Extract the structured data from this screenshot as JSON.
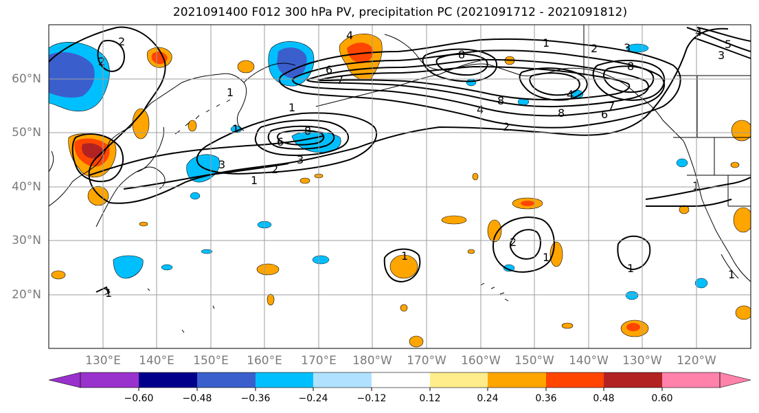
{
  "title": "2021091400 F012 300 hPa PV, precipitation PC (2021091712 - 2021091812)",
  "map": {
    "lon_range_east": [
      120,
      250
    ],
    "lat_range": [
      10,
      70
    ],
    "lat_ticks": [
      "20°N",
      "30°N",
      "40°N",
      "50°N",
      "60°N"
    ],
    "lon_ticks": [
      "130°E",
      "140°E",
      "150°E",
      "160°E",
      "170°E",
      "180°W",
      "170°W",
      "160°W",
      "150°W",
      "140°W",
      "130°W",
      "120°W"
    ],
    "contour_labels": [
      "1",
      "2",
      "3",
      "4",
      "5",
      "6",
      "7",
      "8"
    ]
  },
  "colorbar": {
    "tick_labels": [
      "−0.60",
      "−0.48",
      "−0.36",
      "−0.24",
      "−0.12",
      "0.12",
      "0.24",
      "0.36",
      "0.48",
      "0.60"
    ],
    "colors": [
      "#9932CC",
      "#00008B",
      "#3A5FCD",
      "#00BFFF",
      "#B0E2FF",
      "#FFFFFF",
      "#FFEC8B",
      "#FFA500",
      "#FF4500",
      "#B22222",
      "#FF82AB"
    ]
  }
}
